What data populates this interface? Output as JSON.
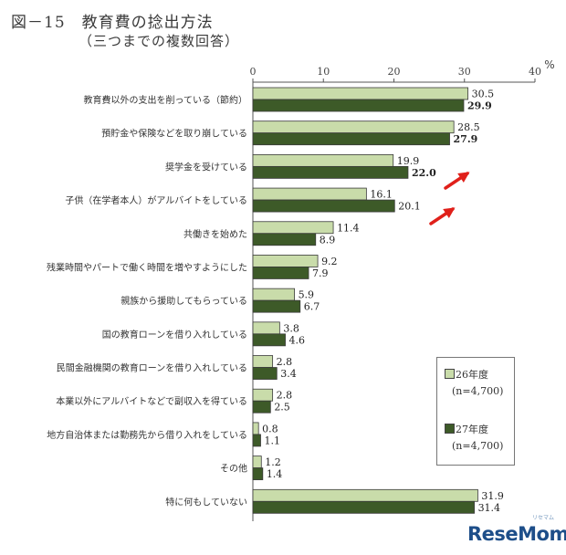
{
  "header": {
    "title": "図－15　教育費の捻出方法",
    "subtitle": "（三つまでの複数回答）"
  },
  "chart_data": {
    "type": "bar",
    "orientation": "horizontal",
    "unit": "%",
    "xlim": [
      0,
      40
    ],
    "xticks": [
      0,
      10,
      20,
      30,
      40
    ],
    "grid": false,
    "legend_position": "bottom-right",
    "categories": [
      "教育費以外の支出を削っている（節約）",
      "預貯金や保険などを取り崩している",
      "奨学金を受けている",
      "子供（在学者本人）がアルバイトをしている",
      "共働きを始めた",
      "残業時間やパートで働く時間を増やすようにした",
      "親族から援助してもらっている",
      "国の教育ローンを借り入れしている",
      "民間金融機関の教育ローンを借り入れしている",
      "本業以外にアルバイトなどで副収入を得ている",
      "地方自治体または勤務先から借り入れをしている",
      "その他",
      "特に何もしていない"
    ],
    "series": [
      {
        "name": "26年度",
        "n_label": "(n=4,700)",
        "color": "#c9dcaa",
        "values": [
          30.5,
          28.5,
          19.9,
          16.1,
          11.4,
          9.2,
          5.9,
          3.8,
          2.8,
          2.8,
          0.8,
          1.2,
          31.9
        ],
        "labels": [
          "30.5",
          "28.5",
          "19.9",
          "16.1",
          "11.4",
          "9.2",
          "5.9",
          "3.8",
          "2.8",
          "2.8",
          "0.8",
          "1.2",
          "31.9"
        ]
      },
      {
        "name": "27年度",
        "n_label": "(n=4,700)",
        "color": "#3d5a28",
        "values": [
          29.9,
          27.9,
          22.0,
          20.1,
          8.9,
          7.9,
          6.7,
          4.6,
          3.4,
          2.5,
          1.1,
          1.4,
          31.4
        ],
        "labels": [
          "29.9",
          "27.9",
          "22.0",
          "20.1",
          "8.9",
          "7.9",
          "6.7",
          "4.6",
          "3.4",
          "2.5",
          "1.1",
          "1.4",
          "31.4"
        ],
        "bold_label_indices": [
          0,
          1,
          2
        ]
      }
    ],
    "annotations": [
      {
        "type": "arrow",
        "color": "#e0201a",
        "points_at_category": 2
      },
      {
        "type": "arrow",
        "color": "#e0201a",
        "points_at_category": 3
      }
    ]
  },
  "watermark": {
    "text": "ReseMom",
    "sub": "リセマム"
  }
}
